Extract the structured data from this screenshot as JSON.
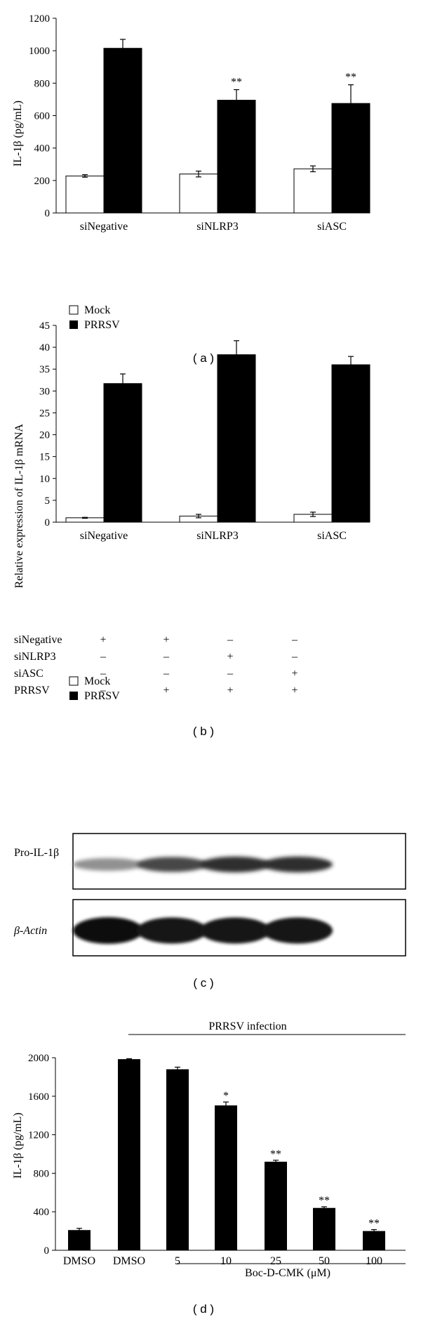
{
  "chart_data": [
    {
      "type": "bar",
      "panel": "(a)",
      "ylabel": "IL-1β (pg/mL)",
      "ylim": [
        0,
        1200
      ],
      "yticks": [
        0,
        200,
        400,
        600,
        800,
        1000,
        1200
      ],
      "categories": [
        "siNegative",
        "siNLRP3",
        "siASC"
      ],
      "series": [
        {
          "name": "Mock",
          "color": "#ffffff",
          "values": [
            228,
            240,
            272
          ],
          "errors": [
            8,
            18,
            18
          ]
        },
        {
          "name": "PRRSV",
          "color": "#000000",
          "values": [
            1015,
            695,
            675
          ],
          "errors": [
            55,
            65,
            115
          ]
        }
      ],
      "annotations": [
        {
          "series": "PRRSV",
          "category": "siNLRP3",
          "text": "**"
        },
        {
          "series": "PRRSV",
          "category": "siASC",
          "text": "**"
        }
      ],
      "legend": [
        "Mock",
        "PRRSV"
      ]
    },
    {
      "type": "bar",
      "panel": "(b)",
      "ylabel": "Relative expression of IL-1β mRNA",
      "ylim": [
        0,
        45
      ],
      "yticks": [
        0,
        5,
        10,
        15,
        20,
        25,
        30,
        35,
        40,
        45
      ],
      "categories": [
        "siNegative",
        "siNLRP3",
        "siASC"
      ],
      "series": [
        {
          "name": "Mock",
          "color": "#ffffff",
          "values": [
            1.0,
            1.4,
            1.8
          ],
          "errors": [
            0.1,
            0.4,
            0.5
          ]
        },
        {
          "name": "PRRSV",
          "color": "#000000",
          "values": [
            31.7,
            38.3,
            36.0
          ],
          "errors": [
            2.2,
            3.2,
            1.9
          ]
        }
      ],
      "legend": [
        "Mock",
        "PRRSV"
      ]
    },
    {
      "type": "bar",
      "panel": "(d)",
      "ylabel": "IL-1β (pg/mL)",
      "ylim": [
        0,
        2000
      ],
      "yticks": [
        0,
        400,
        800,
        1200,
        1600,
        2000
      ],
      "categories": [
        "DMSO",
        "DMSO",
        "5",
        "10",
        "25",
        "50",
        "100"
      ],
      "values": [
        210,
        1985,
        1880,
        1505,
        920,
        440,
        200
      ],
      "errors": [
        18,
        5,
        22,
        35,
        15,
        12,
        15
      ],
      "stars": [
        "",
        "",
        "",
        "*",
        "**",
        "**",
        "**"
      ],
      "bracket_top": "PRRSV infection",
      "bracket_bottom": "Boc-D-CMK (μM)"
    }
  ],
  "labels": {
    "a": "( a )",
    "b": "( b )",
    "c": "( c )",
    "d": "( d )"
  },
  "blot": {
    "rows": [
      {
        "name": "siNegative",
        "marks": [
          "+",
          "+",
          "–",
          "–"
        ]
      },
      {
        "name": "siNLRP3",
        "marks": [
          "–",
          "–",
          "+",
          "–"
        ]
      },
      {
        "name": "siASC",
        "marks": [
          "–",
          "–",
          "–",
          "+"
        ]
      },
      {
        "name": "PRRSV",
        "marks": [
          "–",
          "+",
          "+",
          "+"
        ]
      }
    ],
    "bands": [
      {
        "label": "Pro-IL-1β",
        "intensity": [
          0.45,
          0.75,
          0.85,
          0.85
        ]
      },
      {
        "label": "β-Actin",
        "intensity": [
          1.0,
          0.95,
          0.95,
          0.95
        ]
      }
    ]
  }
}
